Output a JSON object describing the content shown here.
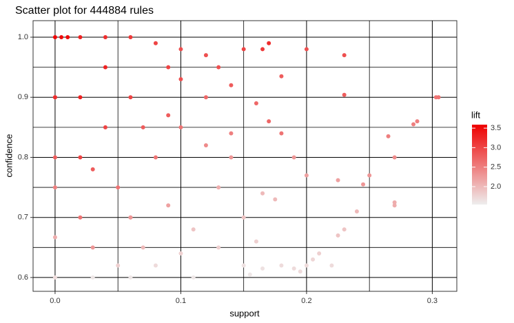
{
  "chart_data": {
    "type": "scatter",
    "title": "Scatter plot for 444884 rules",
    "x_label": "support",
    "y_label": "confidence",
    "legend_title": "lift",
    "xlim": [
      -0.0175,
      0.3195
    ],
    "ylim": [
      0.577,
      1.0275
    ],
    "xticks": [
      {
        "value": 0,
        "label": "0.0"
      },
      0.1,
      0.2,
      0.3
    ],
    "yticks": [
      0.6,
      0.7,
      0.8,
      0.9,
      {
        "value": 1,
        "label": "1.0"
      }
    ],
    "xminor": [
      0.05,
      0.15,
      0.25
    ],
    "yminor": [
      0.65,
      0.75,
      0.85,
      0.95
    ],
    "grid": true,
    "colorlim": [
      1.54,
      3.59
    ],
    "color_low": "#eeeeee",
    "color_high": "#ee0000",
    "colorticks": [
      {
        "value": 2,
        "label": "2.0"
      },
      2.5,
      {
        "value": 3,
        "label": "3.0"
      },
      3.5
    ],
    "x": [
      0.03,
      0.05,
      0.06,
      0.08,
      0.1,
      0.0,
      0.03,
      0.06,
      0.11,
      0.155,
      0.165,
      0.15,
      0.18,
      0.19,
      0.195,
      0.2,
      0.205,
      0.21,
      0.22,
      0.225,
      0.23,
      0.24,
      0.27,
      0.27,
      0.13,
      0.16,
      0.07,
      0.11,
      0.15,
      0.0,
      0.03,
      0.09,
      0.06,
      0.175,
      0.165,
      0.13,
      0.245,
      0.225,
      0.25,
      0.2,
      0.02,
      0.05,
      0.0,
      0.19,
      0.12,
      0.14,
      0.08,
      0.0,
      0.27,
      0.265,
      0.285,
      0.288,
      0.1,
      0.02,
      0.14,
      0.07,
      0.09,
      0.18,
      0.17,
      0.16,
      0.0,
      0.04,
      0.12,
      0.14,
      0.06,
      0.02,
      0.04,
      0.09,
      0.1,
      0.18,
      0.13,
      0.0,
      0.303,
      0.305,
      0.23,
      0.23,
      0.2,
      0.165,
      0.17,
      0.15,
      0.12,
      0.1,
      0.08,
      0.06,
      0.04,
      0.02,
      0.01,
      0.005,
      0.0
    ],
    "y": [
      0.6,
      0.62,
      0.6,
      0.62,
      0.64,
      0.6,
      0.65,
      0.7,
      0.68,
      0.605,
      0.615,
      0.62,
      0.62,
      0.615,
      0.61,
      0.62,
      0.63,
      0.64,
      0.62,
      0.67,
      0.68,
      0.71,
      0.72,
      0.725,
      0.65,
      0.66,
      0.65,
      0.6,
      0.7,
      0.667,
      0.78,
      0.72,
      0.7,
      0.73,
      0.74,
      0.75,
      0.755,
      0.762,
      0.77,
      0.77,
      0.7,
      0.75,
      0.75,
      0.8,
      0.82,
      0.8,
      0.8,
      0.8,
      0.8,
      0.835,
      0.855,
      0.86,
      0.85,
      0.8,
      0.84,
      0.85,
      0.87,
      0.84,
      0.86,
      0.89,
      0.9,
      0.85,
      0.9,
      0.92,
      0.9,
      0.9,
      0.95,
      0.95,
      0.93,
      0.935,
      0.95,
      0.9,
      0.9,
      0.9,
      0.904,
      0.97,
      0.98,
      0.98,
      0.99,
      0.98,
      0.97,
      0.98,
      0.99,
      1.0,
      1.0,
      1.0,
      1.0,
      1.0,
      1.0
    ],
    "lift": [
      1.6,
      1.8,
      1.6,
      1.7,
      1.8,
      1.7,
      2.3,
      2.3,
      1.9,
      1.6,
      1.65,
      1.65,
      1.7,
      1.7,
      1.7,
      1.7,
      1.75,
      1.8,
      1.7,
      1.9,
      1.9,
      2.0,
      2.1,
      2.1,
      1.8,
      1.8,
      2.0,
      1.6,
      1.9,
      2.1,
      2.8,
      2.2,
      2.3,
      2.0,
      2.0,
      2.1,
      2.3,
      2.2,
      2.3,
      2.2,
      2.6,
      2.6,
      2.5,
      2.3,
      2.4,
      2.3,
      2.6,
      2.8,
      2.4,
      2.5,
      2.5,
      2.5,
      2.6,
      3.0,
      2.5,
      2.8,
      2.8,
      2.6,
      2.7,
      2.7,
      3.2,
      3.0,
      2.7,
      2.8,
      3.0,
      3.3,
      3.3,
      3.0,
      2.9,
      2.8,
      2.9,
      3.2,
      2.6,
      2.6,
      2.8,
      2.9,
      2.9,
      3.1,
      3.2,
      3.0,
      2.9,
      2.9,
      3.0,
      3.1,
      3.2,
      3.3,
      3.5,
      3.5,
      3.55
    ]
  }
}
